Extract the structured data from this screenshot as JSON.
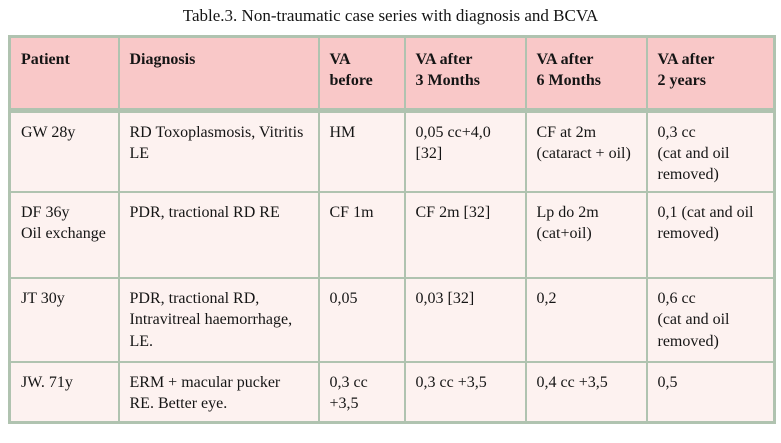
{
  "caption": "Table.3. Non-traumatic case series with diagnosis and BCVA",
  "table": {
    "columns": [
      "Patient",
      "Diagnosis",
      "VA\nbefore",
      "VA after\n3 Months",
      "VA after\n6 Months",
      "VA after\n2 years"
    ],
    "rows": [
      [
        "GW 28y",
        "RD Toxoplasmosis, Vitritis LE",
        "HM",
        "0,05 cc+4,0 [32]",
        "CF at 2m (cataract + oil)",
        "0,3 cc\n(cat and oil removed)"
      ],
      [
        "DF 36y\nOil exchange",
        "PDR, tractional RD RE",
        "CF 1m",
        "CF 2m [32]",
        "Lp do 2m (cat+oil)",
        "0,1 (cat and oil removed)"
      ],
      [
        "JT 30y",
        "PDR, tractional RD, Intravitreal haemorrhage, LE.",
        "0,05",
        "0,03 [32]",
        "0,2",
        "0,6 cc\n(cat and oil removed)"
      ],
      [
        "JW. 71y",
        "ERM + macular pucker RE. Better eye.",
        "0,3 cc +3,5",
        "0,3 cc +3,5",
        "0,4 cc +3,5",
        "0,5"
      ]
    ]
  },
  "colors": {
    "header_bg": "#f9c8c8",
    "row_bg": "#fdf2f0",
    "border": "#b0c3b0",
    "text": "#151515"
  }
}
